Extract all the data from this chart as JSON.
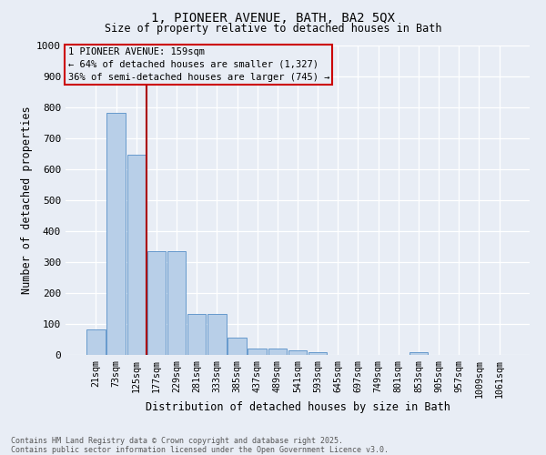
{
  "title_line1": "1, PIONEER AVENUE, BATH, BA2 5QX",
  "title_line2": "Size of property relative to detached houses in Bath",
  "xlabel": "Distribution of detached houses by size in Bath",
  "ylabel": "Number of detached properties",
  "categories": [
    "21sqm",
    "73sqm",
    "125sqm",
    "177sqm",
    "229sqm",
    "281sqm",
    "333sqm",
    "385sqm",
    "437sqm",
    "489sqm",
    "541sqm",
    "593sqm",
    "645sqm",
    "697sqm",
    "749sqm",
    "801sqm",
    "853sqm",
    "905sqm",
    "957sqm",
    "1009sqm",
    "1061sqm"
  ],
  "values": [
    83,
    783,
    648,
    335,
    335,
    133,
    133,
    57,
    22,
    21,
    15,
    10,
    0,
    0,
    0,
    0,
    10,
    0,
    0,
    0,
    0
  ],
  "bar_color": "#b8cfe8",
  "bar_edge_color": "#6699cc",
  "vline_pos": 2.5,
  "vline_color": "#aa0000",
  "annotation_title": "1 PIONEER AVENUE: 159sqm",
  "annotation_line1": "← 64% of detached houses are smaller (1,327)",
  "annotation_line2": "36% of semi-detached houses are larger (745) →",
  "annotation_box_edgecolor": "#cc0000",
  "ylim": [
    0,
    1000
  ],
  "yticks": [
    0,
    100,
    200,
    300,
    400,
    500,
    600,
    700,
    800,
    900,
    1000
  ],
  "bg_color": "#e8edf5",
  "grid_color": "#ffffff",
  "footer_line1": "Contains HM Land Registry data © Crown copyright and database right 2025.",
  "footer_line2": "Contains public sector information licensed under the Open Government Licence v3.0."
}
